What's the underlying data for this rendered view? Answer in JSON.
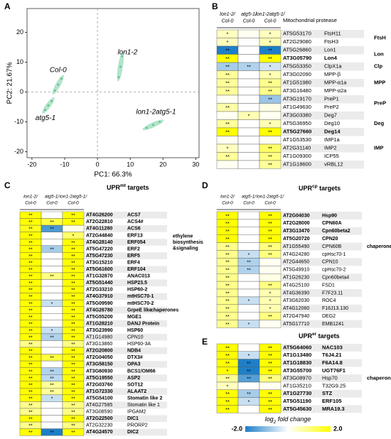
{
  "chart_data": [
    {
      "type": "scatter",
      "panel": "A",
      "xlabel": "PC1: 66.3%",
      "ylabel": "PC2: 21.67%",
      "xlim": [
        -21.5,
        31
      ],
      "ylim": [
        -22,
        28
      ],
      "xticks": [
        -20,
        -10,
        0,
        10,
        20,
        30
      ],
      "yticks": [
        -20,
        -10,
        0,
        10,
        20
      ],
      "ellipse_color": "#a6dfc2",
      "series": [
        {
          "name": "Col-0",
          "color": "#2aa7d6",
          "x": [
            -13,
            -12,
            -11
          ],
          "y": [
            0.5,
            2.5,
            4.5
          ]
        },
        {
          "name": "atg5-1",
          "color": "#1f5f9e",
          "x": [
            -16,
            -15,
            -14
          ],
          "y": [
            -6,
            -4.5,
            -3
          ]
        },
        {
          "name": "lon1-2",
          "color": "#e0261f",
          "x": [
            6.5,
            7,
            7.5
          ],
          "y": [
            5,
            8.5,
            12
          ]
        },
        {
          "name": "lon1-2atg5-1",
          "color": "#2a9a2a",
          "x": [
            15,
            17,
            19
          ],
          "y": [
            -12,
            -11,
            -10
          ]
        }
      ]
    },
    {
      "type": "heatmap",
      "panel": "B",
      "title": [
        "Mitochondrial protease"
      ],
      "columns": [
        [
          "lon1-2/",
          "Col-0"
        ],
        [
          "atg5-1/",
          "Col-0"
        ],
        [
          "lon1-2atg5-1/",
          "Col-0"
        ]
      ],
      "rows": [
        "AT5G53170",
        "AT2G29080",
        "AT5G26860",
        "AT3G05790",
        "AT5G53350",
        "AT3G02090",
        "AT1G51980",
        "AT3G16480",
        "AT3G19170",
        "AT1G49630",
        "AT3G03380",
        "AT5G36950",
        "AT5G27660",
        "AT1G53530",
        "AT2G31140",
        "AT1G09300",
        "AT1G18600"
      ],
      "names": [
        "FtsH11",
        "FtsH3",
        "Lon1",
        "Lon4",
        "ClpX1a",
        "MPP-β",
        "MPP-α1a",
        "MPP-α2a",
        "PreP1",
        "PreP2",
        "Deg7",
        "Deg10",
        "Deg14",
        "IMP1a",
        "IMP2",
        "ICP55",
        "vRBL12"
      ],
      "bold": [
        false,
        false,
        false,
        true,
        false,
        false,
        false,
        false,
        false,
        false,
        false,
        false,
        true,
        false,
        false,
        false,
        false
      ],
      "values": [
        [
          0.5,
          0.1,
          0.5
        ],
        [
          0.5,
          0,
          0.6
        ],
        [
          -2,
          0,
          -2
        ],
        [
          2,
          0,
          2
        ],
        [
          -0.8,
          -0.7,
          -0.4
        ],
        [
          0.8,
          0,
          0.6
        ],
        [
          0.8,
          0,
          0.9
        ],
        [
          0.8,
          0,
          0.9
        ],
        [
          0.1,
          0,
          -0.9
        ],
        [
          0.7,
          0,
          0.2
        ],
        [
          0.1,
          0.6,
          0.1
        ],
        [
          0.8,
          0,
          0.6
        ],
        [
          2,
          0,
          2
        ],
        [
          0.1,
          0,
          0.1
        ],
        [
          0.5,
          0,
          1.2
        ],
        [
          0.8,
          0,
          1
        ],
        [
          0.1,
          0,
          0.8
        ]
      ],
      "significance": [
        [
          "*",
          null,
          "*"
        ],
        [
          "*",
          null,
          "*"
        ],
        [
          "**",
          null,
          "**"
        ],
        [
          "**",
          null,
          "**"
        ],
        [
          "**",
          "**",
          "*"
        ],
        [
          "**",
          null,
          "*"
        ],
        [
          "**",
          null,
          "**"
        ],
        [
          "**",
          null,
          "**"
        ],
        [
          null,
          null,
          "**"
        ],
        [
          "**",
          null,
          null
        ],
        [
          null,
          "*",
          null
        ],
        [
          "**",
          null,
          "*"
        ],
        [
          "**",
          null,
          "**"
        ],
        [
          null,
          null,
          null
        ],
        [
          "*",
          null,
          "**"
        ],
        [
          "**",
          null,
          "**"
        ],
        [
          null,
          null,
          "**"
        ]
      ],
      "groups": [
        {
          "label": [
            "FtsH"
          ],
          "rows": [
            0,
            1
          ]
        },
        {
          "label": [
            "Lon"
          ],
          "rows": [
            2,
            3
          ]
        },
        {
          "label": [
            "Clp"
          ],
          "rows": [
            4,
            4
          ]
        },
        {
          "label": [
            "MPP"
          ],
          "rows": [
            5,
            7
          ]
        },
        {
          "label": [
            "PreP"
          ],
          "rows": [
            8,
            9
          ]
        },
        {
          "label": [
            "Deg"
          ],
          "rows": [
            10,
            12
          ]
        },
        {
          "label": [
            "IMP"
          ],
          "rows": [
            13,
            15
          ]
        }
      ]
    },
    {
      "type": "heatmap",
      "panel": "C",
      "title": [
        "UPR",
        "mt",
        " targets"
      ],
      "columns": [
        [
          "lon1-2/",
          "Col-0"
        ],
        [
          "atg5-1/",
          "Col-0"
        ],
        [
          "lon1-2atg5-1/",
          "Col-0"
        ]
      ],
      "rows": [
        "AT4G26200",
        "AT2G22810",
        "AT4G11280",
        "AT2G44840",
        "AT4G28140",
        "AT5G47220",
        "AT5G47230",
        "AT3G15210",
        "AT5G61600",
        "AT1G32870",
        "AT5G51440",
        "AT2G33210",
        "AT4G37910",
        "AT5G09590",
        "AT4G26780",
        "AT5G55200",
        "AT1G28210",
        "AT3G23990",
        "AT1G14980",
        "AT3G13860",
        "AT2G20800",
        "AT2G04050",
        "AT3G58150",
        "AT3G60930",
        "AT5G19550",
        "AT2G03760",
        "AT1G72330",
        "AT5G54100",
        "AT4G27585",
        "AT3G08590",
        "AT2G22500",
        "AT2G32230",
        "AT4G24570"
      ],
      "names": [
        "ACS7",
        "ACS4#",
        "ACS6",
        "ERF13",
        "ERF054",
        "ERF2",
        "ERF5",
        "ERF4",
        "ERF104",
        "ANAC013",
        "HSP23.5",
        "HSP60-2",
        "mtHSC70-1",
        "mtHSC70-2",
        "GrpeE like",
        "MGE1",
        "DANJ Protein",
        "HSP60",
        "CPN10",
        "HSP60-3A",
        "NDB4",
        "DTX3#",
        "OPA3",
        "BCS1/OM66",
        "ASP2",
        "SOT12",
        "ALAAT2",
        "Stomatin like 2",
        "Stomatin like 1",
        "IPGAM2",
        "DIC1",
        "PRORP2",
        "DIC2"
      ],
      "bold": [
        true,
        true,
        true,
        true,
        true,
        true,
        true,
        true,
        true,
        true,
        true,
        true,
        true,
        true,
        true,
        true,
        true,
        true,
        false,
        false,
        true,
        true,
        true,
        true,
        true,
        true,
        true,
        true,
        false,
        false,
        true,
        false,
        true
      ],
      "values": [
        [
          2,
          0,
          2
        ],
        [
          2,
          1.5,
          2
        ],
        [
          1.8,
          -1.6,
          0.2
        ],
        [
          2,
          0,
          1.2
        ],
        [
          2,
          0,
          2
        ],
        [
          2,
          -0.8,
          2
        ],
        [
          2,
          0,
          2
        ],
        [
          2,
          0,
          2
        ],
        [
          2,
          0,
          2
        ],
        [
          2,
          1,
          2
        ],
        [
          2,
          0,
          2
        ],
        [
          2,
          0,
          2
        ],
        [
          2,
          0,
          2
        ],
        [
          2,
          -0.5,
          2
        ],
        [
          2,
          0,
          2
        ],
        [
          2,
          0,
          2
        ],
        [
          2,
          0,
          2
        ],
        [
          2,
          -0.5,
          2
        ],
        [
          2,
          -0.7,
          2
        ],
        [
          0.9,
          0,
          1
        ],
        [
          2,
          0,
          2
        ],
        [
          2,
          1.5,
          2
        ],
        [
          2,
          0,
          2
        ],
        [
          2,
          -0.7,
          2
        ],
        [
          2,
          -0.6,
          2
        ],
        [
          2,
          0.8,
          2
        ],
        [
          2,
          0.8,
          2
        ],
        [
          2,
          -0.5,
          2
        ],
        [
          0.9,
          0,
          1
        ],
        [
          0.9,
          0,
          1
        ],
        [
          2,
          0,
          2
        ],
        [
          0.9,
          0,
          1
        ],
        [
          2,
          -2,
          2
        ]
      ],
      "significance": [
        [
          "**",
          null,
          "**"
        ],
        [
          "**",
          "**",
          "**"
        ],
        [
          "**",
          "**",
          null
        ],
        [
          "**",
          null,
          "*"
        ],
        [
          "**",
          null,
          "**"
        ],
        [
          "**",
          "**",
          "**"
        ],
        [
          "**",
          null,
          "**"
        ],
        [
          "**",
          null,
          "**"
        ],
        [
          "**",
          null,
          "**"
        ],
        [
          "**",
          "**",
          "**"
        ],
        [
          "**",
          null,
          "**"
        ],
        [
          "**",
          null,
          "**"
        ],
        [
          "**",
          null,
          "**"
        ],
        [
          "**",
          "*",
          "**"
        ],
        [
          "**",
          null,
          "**"
        ],
        [
          "**",
          null,
          "**"
        ],
        [
          "**",
          null,
          "**"
        ],
        [
          "**",
          "*",
          "**"
        ],
        [
          "**",
          "**",
          "**"
        ],
        [
          "**",
          null,
          "**"
        ],
        [
          "**",
          null,
          "**"
        ],
        [
          "**",
          "**",
          "**"
        ],
        [
          "**",
          null,
          "**"
        ],
        [
          "**",
          "**",
          "**"
        ],
        [
          "**",
          "**",
          "**"
        ],
        [
          "**",
          "**",
          "**"
        ],
        [
          "**",
          "**",
          "**"
        ],
        [
          "**",
          "*",
          "**"
        ],
        [
          "**",
          null,
          "**"
        ],
        [
          "**",
          null,
          "**"
        ],
        [
          "**",
          null,
          "**"
        ],
        [
          "**",
          null,
          "**"
        ],
        [
          "**",
          "**",
          "**"
        ]
      ],
      "groups": [
        {
          "label": [
            "ethylene",
            "biosynthesis",
            "&signaling"
          ],
          "rows": [
            0,
            8
          ]
        },
        {
          "label": [
            "chaperones"
          ],
          "rows": [
            14,
            14
          ]
        }
      ]
    },
    {
      "type": "heatmap",
      "panel": "D",
      "title": [
        "UPR",
        "cp",
        " targets"
      ],
      "columns": [
        [
          "lon1-2/",
          "Col-0"
        ],
        [
          "atg5-1/",
          "Col-0"
        ],
        [
          "lon1-2atg5-1/",
          "Col-0"
        ]
      ],
      "rows": [
        "AT2G04030",
        "AT2G28000",
        "AT3G13470",
        "AT5G20720",
        "AT1G55490",
        "AT4G24280",
        "AT2G44650",
        "AT5G49910",
        "AT1G26230",
        "AT4G25100",
        "AT4G36390",
        "AT3G62030",
        "AT4G12060",
        "AT2G47940",
        "AT5G17710"
      ],
      "names": [
        "Hsp90",
        "CPN60A",
        "Cpn60beta2",
        "CPN20",
        "CPN60B",
        "cpHsc70-1",
        "CPN10",
        "cpHsc70-2",
        "Cpn60beta4",
        "FSD1",
        "F7F23.11",
        "ROC4",
        "F16J13.130",
        "DEG2",
        "EMB1241"
      ],
      "bold": [
        true,
        true,
        true,
        true,
        false,
        false,
        false,
        false,
        false,
        false,
        false,
        false,
        false,
        false,
        false
      ],
      "values": [
        [
          2,
          0,
          2
        ],
        [
          2,
          0,
          2
        ],
        [
          2,
          0,
          2
        ],
        [
          2,
          0,
          2
        ],
        [
          0.9,
          0,
          1
        ],
        [
          0.9,
          -0.5,
          1
        ],
        [
          0.9,
          -0.7,
          0.1
        ],
        [
          0.9,
          -0.7,
          0.1
        ],
        [
          0.9,
          0,
          0.2
        ],
        [
          0.9,
          0,
          1
        ],
        [
          0.9,
          0,
          0.6
        ],
        [
          0.9,
          -0.5,
          0.6
        ],
        [
          0.9,
          0,
          0.6
        ],
        [
          0.9,
          0,
          1
        ],
        [
          0.9,
          -0.5,
          0.1
        ]
      ],
      "significance": [
        [
          "**",
          null,
          "**"
        ],
        [
          "**",
          null,
          "**"
        ],
        [
          "**",
          null,
          "**"
        ],
        [
          "**",
          null,
          "**"
        ],
        [
          "**",
          null,
          "**"
        ],
        [
          "**",
          "*",
          "**"
        ],
        [
          "**",
          "**",
          null
        ],
        [
          "**",
          "**",
          null
        ],
        [
          "**",
          null,
          null
        ],
        [
          "**",
          null,
          "**"
        ],
        [
          "**",
          null,
          "*"
        ],
        [
          "**",
          "*",
          "*"
        ],
        [
          "**",
          null,
          "*"
        ],
        [
          "**",
          null,
          "**"
        ],
        [
          "**",
          "*",
          null
        ]
      ],
      "groups": [
        {
          "label": [
            "chaperones"
          ],
          "rows": [
            0,
            8
          ]
        }
      ]
    },
    {
      "type": "heatmap",
      "panel": "E",
      "title": [
        "UPR",
        "er",
        " targets"
      ],
      "rows": [
        "AT5G64060",
        "AT1G13480",
        "AT1G18830",
        "AT3G55700",
        "AT3G08970",
        "AT1G35210",
        "AT1G27730",
        "AT5G51190",
        "AT5G45630"
      ],
      "names": [
        "NAC103",
        "T6J4.21",
        "F6A14.8",
        "UGT76F1",
        "Hsp70",
        "T32G9.25",
        "STZ",
        "ERF105",
        "MRA19.3"
      ],
      "bold": [
        true,
        true,
        true,
        true,
        false,
        false,
        true,
        true,
        true
      ],
      "values": [
        [
          2,
          0,
          2
        ],
        [
          2,
          -0.5,
          2
        ],
        [
          2,
          -2,
          2
        ],
        [
          2,
          -2,
          2
        ],
        [
          0.8,
          -1.5,
          1
        ],
        [
          0.5,
          0,
          0.1
        ],
        [
          2,
          -0.8,
          2
        ],
        [
          2,
          -0.5,
          2
        ],
        [
          2,
          0,
          2
        ]
      ],
      "significance": [
        [
          "**",
          null,
          "**"
        ],
        [
          "**",
          "*",
          "**"
        ],
        [
          "**",
          "**",
          "**"
        ],
        [
          "*",
          "**",
          "**"
        ],
        [
          "**",
          "**",
          "**"
        ],
        [
          "*",
          null,
          null
        ],
        [
          "**",
          "**",
          "**"
        ],
        [
          "**",
          "*",
          "**"
        ],
        [
          "**",
          null,
          "**"
        ]
      ],
      "groups": [
        {
          "label": [
            "chaperones"
          ],
          "rows": [
            4,
            4
          ]
        }
      ],
      "colorbar": {
        "title": [
          "log",
          "2",
          " fold change"
        ],
        "lim": [
          -2,
          2
        ],
        "colors": [
          "#1e7fc8",
          "#ffffff",
          "#ffff00"
        ],
        "ticks": [
          {
            "value": -2,
            "label": "-2.0"
          },
          {
            "value": 2,
            "label": "2.0"
          }
        ]
      }
    }
  ]
}
